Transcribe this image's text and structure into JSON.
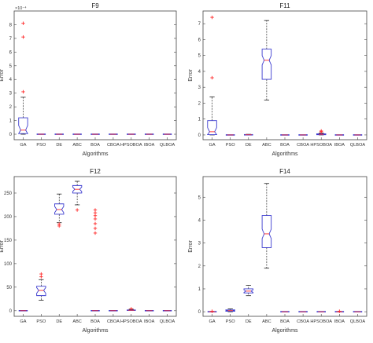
{
  "figure": {
    "colors": {
      "box": "#3b3bcf",
      "median": "#ff2a2a",
      "outlier": "#ff2a2a",
      "whisker": "#000000",
      "axis": "#444444"
    }
  },
  "chart_data": [
    {
      "type": "boxplot",
      "title": "F9",
      "xlabel": "Algorithms",
      "ylabel": "Error",
      "y_exponent_label": "×10⁻⁴",
      "ylim": [
        -0.4,
        9
      ],
      "yticks": [
        0,
        1,
        2,
        3,
        4,
        5,
        6,
        7,
        8
      ],
      "categories": [
        "GA",
        "PSO",
        "DE",
        "ABC",
        "BOA",
        "CBOA",
        "HPSOBOA",
        "IBOA",
        "QLBOA"
      ],
      "boxes": [
        {
          "min": 0,
          "q1": 0.05,
          "median": 0.3,
          "q3": 1.2,
          "max": 2.7,
          "outliers": [
            3.1,
            7.1,
            8.1
          ]
        },
        {
          "min": 0,
          "q1": 0,
          "median": 0,
          "q3": 0,
          "max": 0,
          "outliers": []
        },
        {
          "min": 0,
          "q1": 0,
          "median": 0,
          "q3": 0,
          "max": 0,
          "outliers": []
        },
        {
          "min": 0,
          "q1": 0,
          "median": 0,
          "q3": 0,
          "max": 0,
          "outliers": []
        },
        {
          "min": 0,
          "q1": 0,
          "median": 0,
          "q3": 0,
          "max": 0,
          "outliers": []
        },
        {
          "min": 0,
          "q1": 0,
          "median": 0,
          "q3": 0,
          "max": 0,
          "outliers": []
        },
        {
          "min": 0,
          "q1": 0,
          "median": 0,
          "q3": 0,
          "max": 0,
          "outliers": []
        },
        {
          "min": 0,
          "q1": 0,
          "median": 0,
          "q3": 0,
          "max": 0,
          "outliers": []
        },
        {
          "min": 0,
          "q1": 0,
          "median": 0,
          "q3": 0,
          "max": 0,
          "outliers": []
        }
      ]
    },
    {
      "type": "boxplot",
      "title": "F11",
      "xlabel": "Algorithms",
      "ylabel": "Error",
      "ylim": [
        -0.3,
        7.8
      ],
      "yticks": [
        0,
        1,
        2,
        3,
        4,
        5,
        6,
        7
      ],
      "categories": [
        "GA",
        "PSO",
        "DE",
        "ABC",
        "BOA",
        "CBOA",
        "HPSOBOA",
        "IBOA",
        "QLBOA"
      ],
      "boxes": [
        {
          "min": 0,
          "q1": 0.02,
          "median": 0.2,
          "q3": 0.9,
          "max": 2.4,
          "outliers": [
            3.6,
            7.4
          ]
        },
        {
          "min": 0,
          "q1": 0,
          "median": 0,
          "q3": 0,
          "max": 0,
          "outliers": []
        },
        {
          "min": 0,
          "q1": 0,
          "median": 0.01,
          "q3": 0.02,
          "max": 0.04,
          "outliers": []
        },
        {
          "min": 2.2,
          "q1": 3.5,
          "median": 4.7,
          "q3": 5.4,
          "max": 7.2,
          "outliers": []
        },
        {
          "min": 0,
          "q1": 0,
          "median": 0,
          "q3": 0,
          "max": 0,
          "outliers": []
        },
        {
          "min": 0,
          "q1": 0,
          "median": 0,
          "q3": 0,
          "max": 0,
          "outliers": []
        },
        {
          "min": 0,
          "q1": 0.01,
          "median": 0.04,
          "q3": 0.07,
          "max": 0.12,
          "outliers": [
            0.2,
            0.25
          ]
        },
        {
          "min": 0,
          "q1": 0,
          "median": 0,
          "q3": 0,
          "max": 0,
          "outliers": []
        },
        {
          "min": 0,
          "q1": 0,
          "median": 0,
          "q3": 0,
          "max": 0,
          "outliers": []
        }
      ]
    },
    {
      "type": "boxplot",
      "title": "F12",
      "xlabel": "Algorithms",
      "ylabel": "Error",
      "ylim": [
        -12,
        285
      ],
      "yticks": [
        0,
        50,
        100,
        150,
        200,
        250
      ],
      "categories": [
        "GA",
        "PSO",
        "DE",
        "ABC",
        "BOA",
        "CBOA",
        "HPSOBOA",
        "IBOA",
        "QLBOA"
      ],
      "boxes": [
        {
          "min": 0,
          "q1": 0,
          "median": 0,
          "q3": 0,
          "max": 0,
          "outliers": []
        },
        {
          "min": 22,
          "q1": 32,
          "median": 43,
          "q3": 52,
          "max": 66,
          "outliers": [
            72,
            78
          ]
        },
        {
          "min": 187,
          "q1": 205,
          "median": 215,
          "q3": 227,
          "max": 248,
          "outliers": [
            180,
            184
          ]
        },
        {
          "min": 225,
          "q1": 250,
          "median": 258,
          "q3": 266,
          "max": 275,
          "outliers": [
            214
          ]
        },
        {
          "min": 0,
          "q1": 0,
          "median": 0,
          "q3": 0,
          "max": 0,
          "outliers": [
            165,
            175,
            185,
            195,
            202,
            208,
            214
          ]
        },
        {
          "min": 0,
          "q1": 0,
          "median": 0,
          "q3": 0,
          "max": 0,
          "outliers": []
        },
        {
          "min": 0,
          "q1": 0,
          "median": 1,
          "q3": 2,
          "max": 3,
          "outliers": [
            4
          ]
        },
        {
          "min": 0,
          "q1": 0,
          "median": 0,
          "q3": 0,
          "max": 0,
          "outliers": []
        },
        {
          "min": 0,
          "q1": 0,
          "median": 0,
          "q3": 0,
          "max": 0,
          "outliers": []
        }
      ]
    },
    {
      "type": "boxplot",
      "title": "F14",
      "xlabel": "Algorithms",
      "ylabel": "Error",
      "ylim": [
        -0.2,
        5.9
      ],
      "yticks": [
        0,
        1,
        2,
        3,
        4,
        5
      ],
      "categories": [
        "GA",
        "PSO",
        "DE",
        "ABC",
        "BOA",
        "CBOA",
        "HPSOBOA",
        "IBOA",
        "QLBOA"
      ],
      "boxes": [
        {
          "min": 0,
          "q1": 0,
          "median": 0,
          "q3": 0,
          "max": 0,
          "outliers": [
            0.02
          ]
        },
        {
          "min": 0,
          "q1": 0.02,
          "median": 0.05,
          "q3": 0.08,
          "max": 0.12,
          "outliers": []
        },
        {
          "min": 0.7,
          "q1": 0.82,
          "median": 0.9,
          "q3": 1.0,
          "max": 1.15,
          "outliers": []
        },
        {
          "min": 1.9,
          "q1": 2.8,
          "median": 3.4,
          "q3": 4.2,
          "max": 5.6,
          "outliers": []
        },
        {
          "min": 0,
          "q1": 0,
          "median": 0,
          "q3": 0,
          "max": 0,
          "outliers": []
        },
        {
          "min": 0,
          "q1": 0,
          "median": 0,
          "q3": 0,
          "max": 0,
          "outliers": []
        },
        {
          "min": 0,
          "q1": 0,
          "median": 0,
          "q3": 0,
          "max": 0,
          "outliers": []
        },
        {
          "min": 0,
          "q1": 0,
          "median": 0,
          "q3": 0,
          "max": 0,
          "outliers": [
            0.02
          ]
        },
        {
          "min": 0,
          "q1": 0,
          "median": 0,
          "q3": 0,
          "max": 0,
          "outliers": []
        }
      ]
    }
  ]
}
